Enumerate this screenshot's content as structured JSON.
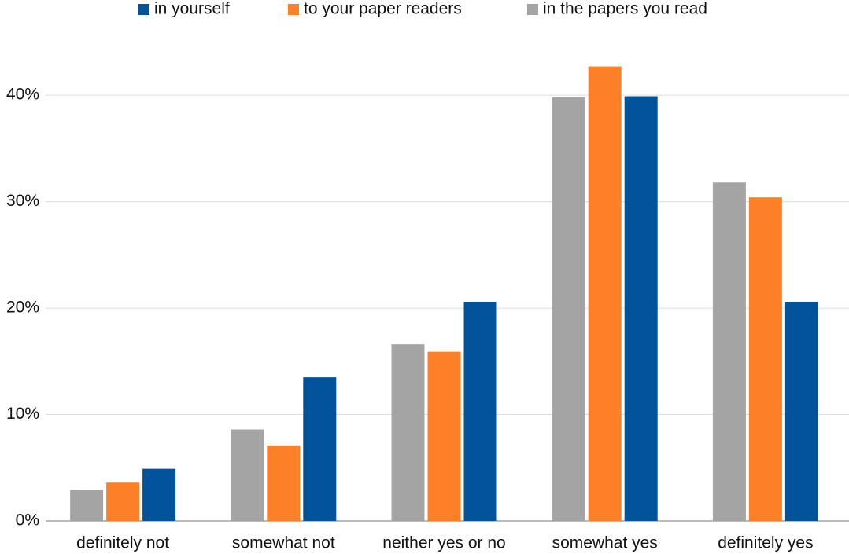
{
  "chart_data": {
    "type": "bar",
    "categories": [
      "definitely not",
      "somewhat not",
      "neither yes or no",
      "somewhat yes",
      "definitely yes"
    ],
    "series": [
      {
        "name": "in yourself",
        "color": "#02539a",
        "values": [
          4.9,
          13.5,
          20.6,
          39.9,
          20.6
        ]
      },
      {
        "name": "to your paper readers",
        "color": "#fd7f28",
        "values": [
          3.6,
          7.1,
          15.9,
          42.7,
          30.4
        ]
      },
      {
        "name": "in the papers you read",
        "color": "#a5a4a5",
        "values": [
          2.9,
          8.6,
          16.6,
          39.8,
          31.8
        ]
      }
    ],
    "ylim": [
      0,
      44
    ],
    "yticks": [
      {
        "value": 0,
        "label": "0%"
      },
      {
        "value": 10,
        "label": "10%"
      },
      {
        "value": 20,
        "label": "20%"
      },
      {
        "value": 30,
        "label": "30%"
      },
      {
        "value": 40,
        "label": "40%"
      }
    ],
    "grid": true,
    "legend": "top"
  }
}
